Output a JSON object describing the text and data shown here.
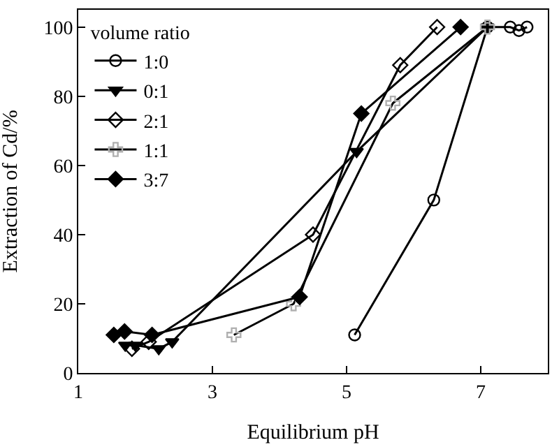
{
  "chart_data": {
    "type": "line",
    "xlabel": "Equilibrium pH",
    "ylabel": "Extraction of Cd/%",
    "legend_title": "volume ratio",
    "xlim": [
      1,
      8
    ],
    "xticks": [
      1,
      3,
      5,
      7
    ],
    "ylim": [
      0,
      105
    ],
    "yticks": [
      0,
      20,
      40,
      60,
      80,
      100
    ],
    "legend": "top left",
    "line_style": "solid",
    "series": [
      {
        "name": "1:0",
        "color": "#000000",
        "marker": "circle",
        "x": [
          5.12,
          6.3,
          7.1,
          7.44,
          7.57,
          7.69
        ],
        "values": [
          11,
          50,
          100,
          100,
          99,
          100
        ]
      },
      {
        "name": "0:1",
        "color": "#000000",
        "marker": "triangle",
        "x": [
          1.7,
          1.85,
          2.2,
          2.4,
          5.15,
          7.1
        ],
        "values": [
          8,
          8,
          7,
          9,
          64,
          100
        ]
      },
      {
        "name": "2:1",
        "color": "#000000",
        "marker": "diamond",
        "x": [
          1.8,
          2.05,
          4.5,
          5.8,
          6.35
        ],
        "values": [
          7,
          9,
          40,
          89,
          100
        ]
      },
      {
        "name": "1:1",
        "color": "#b0b0b0",
        "marker": "cross",
        "x": [
          3.32,
          4.21,
          5.69,
          7.1
        ],
        "values": [
          11,
          20,
          78,
          100
        ]
      },
      {
        "name": "3:7",
        "color": "#000000",
        "marker": "diamond",
        "x": [
          1.53,
          1.69,
          2.1,
          4.3,
          5.22,
          6.7
        ],
        "values": [
          11,
          12,
          11,
          22,
          75,
          100
        ]
      }
    ]
  }
}
